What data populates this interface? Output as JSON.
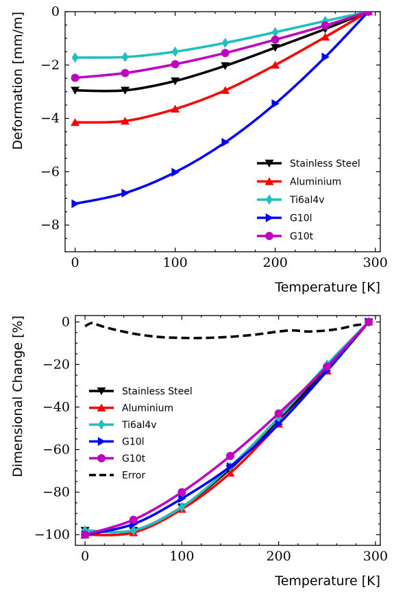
{
  "chart_data": [
    {
      "type": "line",
      "title": "",
      "xlabel": "Temperature [K]",
      "ylabel": "Deformation [mm/m]",
      "xlim": [
        -10,
        305
      ],
      "ylim": [
        -9,
        0
      ],
      "xticks": [
        0,
        100,
        200,
        300
      ],
      "yticks": [
        0,
        -2,
        -4,
        -6,
        -8
      ],
      "grid": false,
      "legend_position": "lower-right",
      "x": [
        0,
        50,
        100,
        150,
        200,
        250,
        293
      ],
      "series": [
        {
          "name": "Stainless Steel",
          "color": "#000000",
          "marker": "triangle-down",
          "values": [
            -2.95,
            -2.95,
            -2.6,
            -2.03,
            -1.35,
            -0.65,
            0
          ]
        },
        {
          "name": "Aluminium",
          "color": "#ff0000",
          "marker": "triangle-up",
          "values": [
            -4.15,
            -4.1,
            -3.65,
            -2.95,
            -2.0,
            -0.95,
            0
          ]
        },
        {
          "name": "Ti6al4v",
          "color": "#1fbfbf",
          "marker": "diamond",
          "values": [
            -1.72,
            -1.7,
            -1.5,
            -1.17,
            -0.77,
            -0.35,
            0
          ]
        },
        {
          "name": "G10l",
          "color": "#0000ff",
          "marker": "triangle-right",
          "values": [
            -7.2,
            -6.8,
            -6.02,
            -4.9,
            -3.45,
            -1.7,
            0
          ]
        },
        {
          "name": "G10t",
          "color": "#bf00bf",
          "marker": "circle",
          "values": [
            -2.48,
            -2.3,
            -1.97,
            -1.55,
            -1.05,
            -0.52,
            0
          ]
        }
      ]
    },
    {
      "type": "line",
      "title": "",
      "xlabel": "Temperature [K]",
      "ylabel": "Dimensional Change [%]",
      "xlim": [
        -10,
        305
      ],
      "ylim": [
        -105,
        3
      ],
      "xticks": [
        0,
        100,
        200,
        300
      ],
      "yticks": [
        0,
        -20,
        -40,
        -60,
        -80,
        -100
      ],
      "grid": false,
      "legend_position": "center-left",
      "x": [
        0,
        50,
        100,
        150,
        200,
        250,
        293
      ],
      "series": [
        {
          "name": "Stainless Steel",
          "color": "#000000",
          "marker": "triangle-down",
          "values": [
            -98,
            -98,
            -87,
            -69,
            -46,
            -22,
            0
          ]
        },
        {
          "name": "Aluminium",
          "color": "#ff0000",
          "marker": "triangle-up",
          "values": [
            -100,
            -99,
            -88,
            -71,
            -48,
            -23,
            0
          ]
        },
        {
          "name": "Ti6al4v",
          "color": "#1fbfbf",
          "marker": "diamond",
          "values": [
            -98,
            -98,
            -87,
            -68,
            -45,
            -20,
            0
          ]
        },
        {
          "name": "G10l",
          "color": "#0000ff",
          "marker": "triangle-right",
          "values": [
            -100,
            -95,
            -83,
            -68,
            -48,
            -23,
            0
          ]
        },
        {
          "name": "G10t",
          "color": "#bf00bf",
          "marker": "circle",
          "values": [
            -100,
            -93,
            -80,
            -63,
            -43,
            -21,
            0
          ]
        }
      ],
      "error_series": {
        "name": "Error",
        "color": "#000000",
        "x": [
          0,
          7,
          14,
          25,
          50,
          75,
          100,
          125,
          150,
          175,
          200,
          215,
          230,
          250,
          265,
          280,
          293
        ],
        "values": [
          -2,
          -0.5,
          -1.5,
          -3,
          -5.5,
          -7,
          -7.5,
          -7.5,
          -7,
          -6,
          -4.5,
          -4,
          -4.5,
          -4,
          -3,
          -1.5,
          -1
        ]
      }
    }
  ]
}
